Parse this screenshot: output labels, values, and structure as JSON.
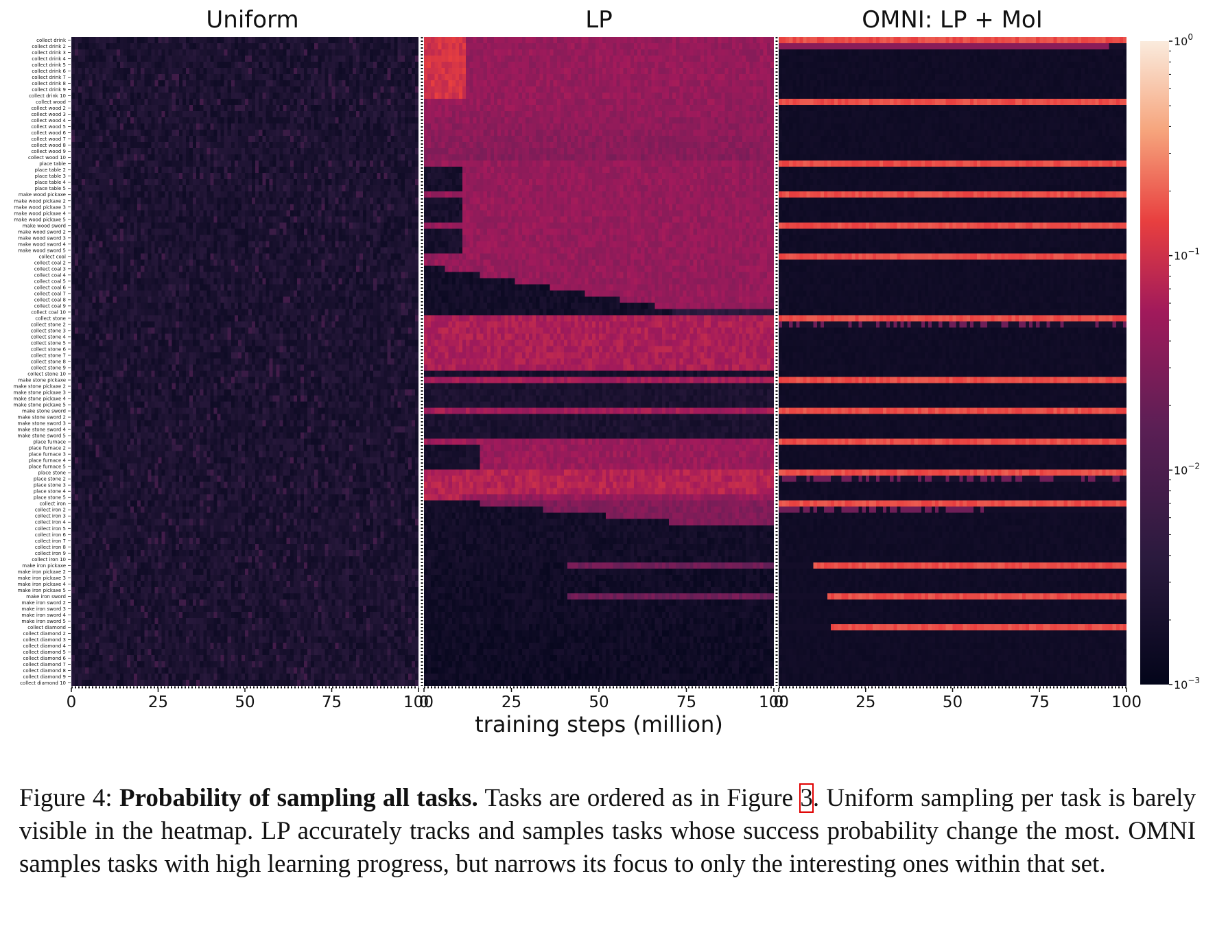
{
  "chart_data": {
    "type": "heatmap",
    "panels": [
      {
        "title": "Uniform",
        "pattern": "uniform"
      },
      {
        "title": "LP",
        "pattern": "lp"
      },
      {
        "title": "OMNI: LP + MoI",
        "pattern": "omni"
      }
    ],
    "xlabel": "training steps (million)",
    "xticks": [
      0,
      25,
      50,
      75,
      100
    ],
    "xlim": [
      0,
      100
    ],
    "color_scale": "log",
    "colorbar": {
      "min_label": "10",
      "min_exp": "−3",
      "exps": [
        "0",
        "−1",
        "−2",
        "−3"
      ],
      "range": [
        0.001,
        1
      ]
    },
    "colormap": [
      "#03051a",
      "#2b1a3e",
      "#5b1f55",
      "#a11a5b",
      "#e83f3f",
      "#f6a47c",
      "#faebdd"
    ],
    "tasks": [
      "collect drink",
      "collect drink 2",
      "collect drink 3",
      "collect drink 4",
      "collect drink 5",
      "collect drink 6",
      "collect drink 7",
      "collect drink 8",
      "collect drink 9",
      "collect drink 10",
      "collect wood",
      "collect wood 2",
      "collect wood 3",
      "collect wood 4",
      "collect wood 5",
      "collect wood 6",
      "collect wood 7",
      "collect wood 8",
      "collect wood 9",
      "collect wood 10",
      "place table",
      "place table 2",
      "place table 3",
      "place table 4",
      "place table 5",
      "make wood pickaxe",
      "make wood pickaxe 2",
      "make wood pickaxe 3",
      "make wood pickaxe 4",
      "make wood pickaxe 5",
      "make wood sword",
      "make wood sword 2",
      "make wood sword 3",
      "make wood sword 4",
      "make wood sword 5",
      "collect coal",
      "collect coal 2",
      "collect coal 3",
      "collect coal 4",
      "collect coal 5",
      "collect coal 6",
      "collect coal 7",
      "collect coal 8",
      "collect coal 9",
      "collect coal 10",
      "collect stone",
      "collect stone 2",
      "collect stone 3",
      "collect stone 4",
      "collect stone 5",
      "collect stone 6",
      "collect stone 7",
      "collect stone 8",
      "collect stone 9",
      "collect stone 10",
      "make stone pickaxe",
      "make stone pickaxe 2",
      "make stone pickaxe 3",
      "make stone pickaxe 4",
      "make stone pickaxe 5",
      "make stone sword",
      "make stone sword 2",
      "make stone sword 3",
      "make stone sword 4",
      "make stone sword 5",
      "place furnace",
      "place furnace 2",
      "place furnace 3",
      "place furnace 4",
      "place furnace 5",
      "place stone",
      "place stone 2",
      "place stone 3",
      "place stone 4",
      "place stone 5",
      "collect iron",
      "collect iron 2",
      "collect iron 3",
      "collect iron 4",
      "collect iron 5",
      "collect iron 6",
      "collect iron 7",
      "collect iron 8",
      "collect iron 9",
      "collect iron 10",
      "make iron pickaxe",
      "make iron pickaxe 2",
      "make iron pickaxe 3",
      "make iron pickaxe 4",
      "make iron pickaxe 5",
      "make iron sword",
      "make iron sword 2",
      "make iron sword 3",
      "make iron sword 4",
      "make iron sword 5",
      "collect diamond",
      "collect diamond 2",
      "collect diamond 3",
      "collect diamond 4",
      "collect diamond 5",
      "collect diamond 6",
      "collect diamond 7",
      "collect diamond 8",
      "collect diamond 9",
      "collect diamond 10"
    ]
  },
  "caption": {
    "label": "Figure 4:",
    "bold": "Probability of sampling all tasks.",
    "text_before_ref": "Tasks are ordered as in Figure",
    "ref": "3",
    "text_after_ref": ". Uniform sampling per task is barely visible in the heatmap. LP accurately tracks and samples tasks whose success probability change the most. OMNI samples tasks with high learning progress, but narrows its focus to only the interesting ones within that set."
  }
}
